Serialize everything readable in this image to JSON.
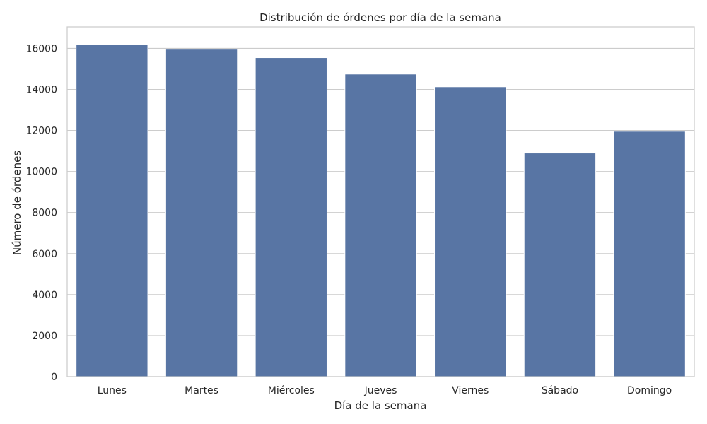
{
  "chart_data": {
    "type": "bar",
    "title": "Distribución de órdenes por día de la semana",
    "xlabel": "Día de la semana",
    "ylabel": "Número de órdenes",
    "categories": [
      "Lunes",
      "Martes",
      "Miércoles",
      "Jueves",
      "Viernes",
      "Sábado",
      "Domingo"
    ],
    "values": [
      16200,
      15960,
      15550,
      14750,
      14130,
      10900,
      11960
    ],
    "ylim": [
      0,
      17050
    ],
    "yticks": [
      0,
      2000,
      4000,
      6000,
      8000,
      10000,
      12000,
      14000,
      16000
    ],
    "grid": true,
    "style": "seaborn-whitegrid"
  },
  "colors": {
    "bar": "#5875a4",
    "bar_edge": "#ffffff",
    "grid": "#cccccc",
    "frame": "#cccccc",
    "text": "#262626"
  }
}
